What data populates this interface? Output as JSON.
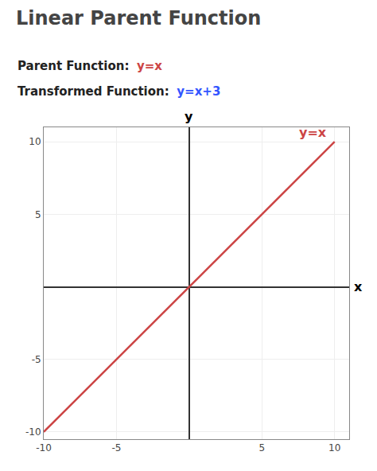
{
  "chart_data": {
    "type": "line",
    "title": "Linear Parent Function",
    "annotations": [
      {
        "text": "Parent Function:"
      },
      {
        "text": "y=x",
        "color": "#CC4444"
      },
      {
        "text": "Transformed Function:"
      },
      {
        "text": "y=x+3",
        "color": "#3355FF"
      }
    ],
    "xlabel": "x",
    "ylabel": "y",
    "x": [
      -10,
      10
    ],
    "series": [
      {
        "name": "y=x",
        "color": "#CC4444",
        "values": [
          -10,
          10
        ]
      }
    ],
    "xlim": [
      -10,
      11
    ],
    "ylim": [
      -10.5,
      11
    ],
    "xticks": [
      -10,
      -5,
      5,
      10
    ],
    "yticks": [
      -10,
      -5,
      5,
      10
    ],
    "grid": true,
    "legend": false
  }
}
